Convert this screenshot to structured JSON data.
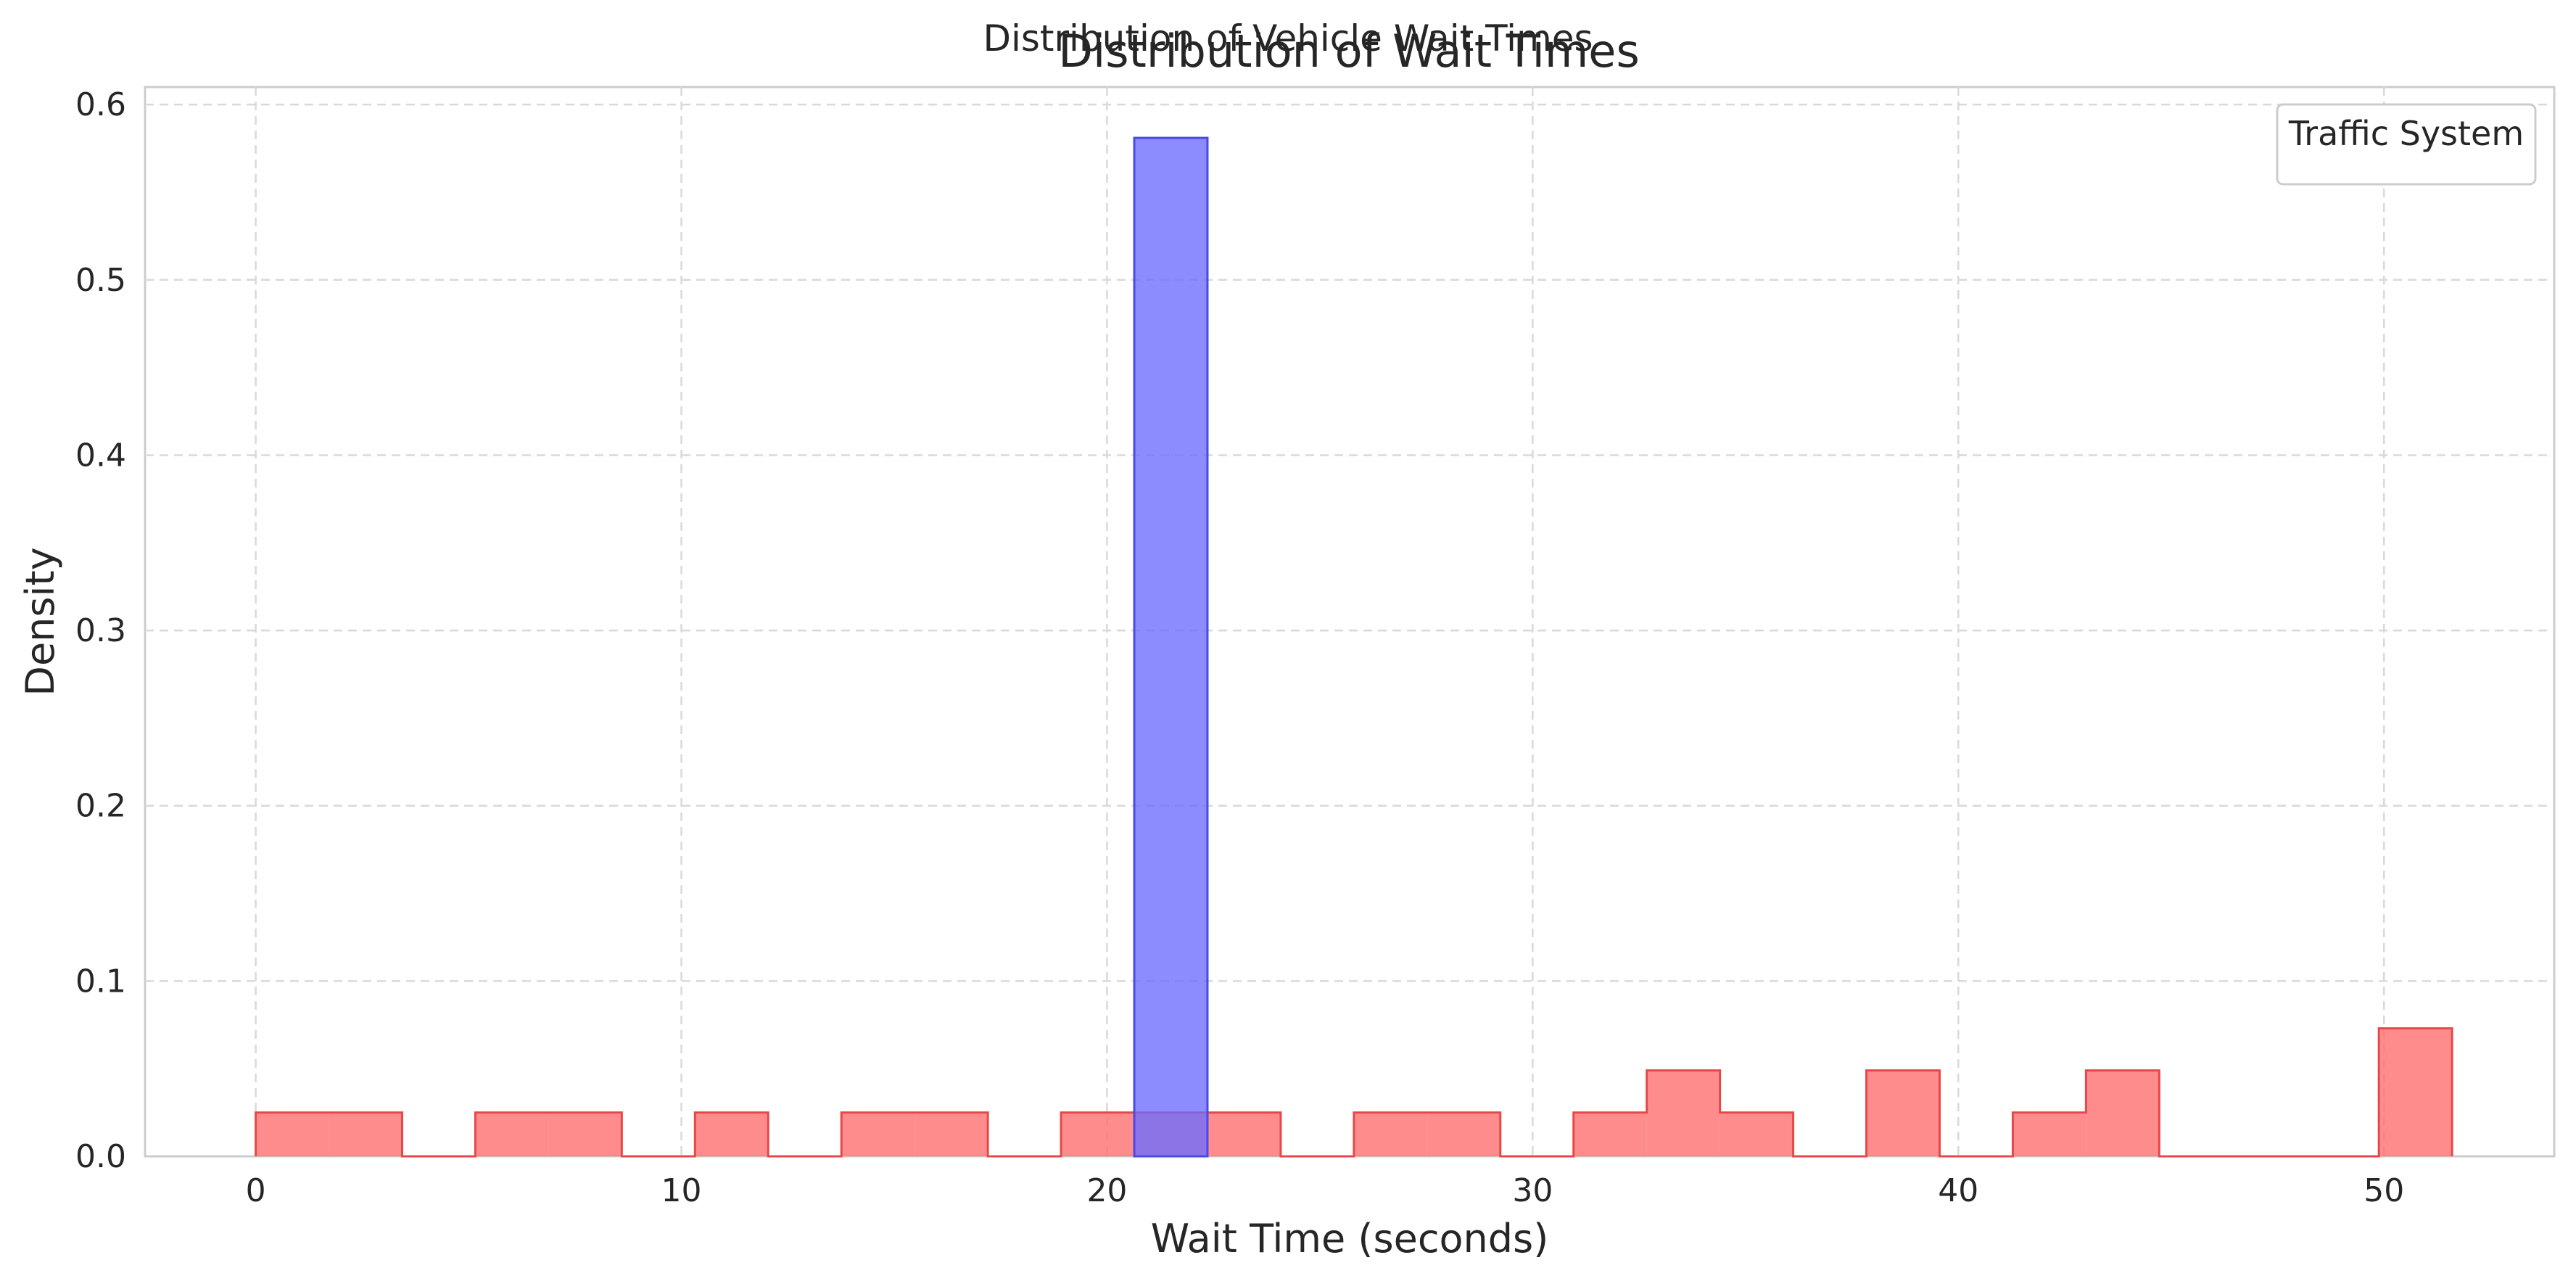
{
  "suptitle": "Distribution of Vehicle Wait Times",
  "chart_data": {
    "type": "bar",
    "title": "Distribution of Wait Times",
    "xlabel": "Wait Time (seconds)",
    "ylabel": "Density",
    "xlim": [
      -2.6,
      54.0
    ],
    "ylim": [
      0,
      0.61
    ],
    "xticks": [
      "0",
      "10",
      "20",
      "30",
      "40",
      "50"
    ],
    "yticks": [
      "0.0",
      "0.1",
      "0.2",
      "0.3",
      "0.4",
      "0.5",
      "0.6"
    ],
    "grid": true,
    "legend": {
      "title": "Traffic System",
      "position": "top-right",
      "entries": []
    },
    "series": [
      {
        "color": "#ff6b6b",
        "edge_color": "#e8474a",
        "style": "step-filled",
        "bin_edges": [
          0.0,
          1.72,
          3.44,
          5.16,
          6.88,
          8.6,
          10.32,
          12.04,
          13.76,
          15.48,
          17.2,
          18.92,
          20.64,
          22.36,
          24.08,
          25.8,
          27.52,
          29.24,
          30.96,
          32.68,
          34.4,
          36.12,
          37.84,
          39.56,
          41.28,
          43.0,
          44.72,
          46.44,
          48.16,
          49.88,
          51.6
        ],
        "values": [
          0.025,
          0.025,
          0,
          0.025,
          0.025,
          0,
          0.025,
          0,
          0.025,
          0.025,
          0,
          0.025,
          0.025,
          0.025,
          0,
          0.025,
          0.025,
          0,
          0.025,
          0.049,
          0.025,
          0,
          0.049,
          0,
          0.025,
          0.049,
          0,
          0,
          0,
          0.073
        ]
      },
      {
        "color": "#6b6bff",
        "edge_color": "#4a4ae8",
        "style": "bar",
        "bin_edges": [
          20.64,
          22.36
        ],
        "values": [
          0.581
        ]
      }
    ]
  }
}
